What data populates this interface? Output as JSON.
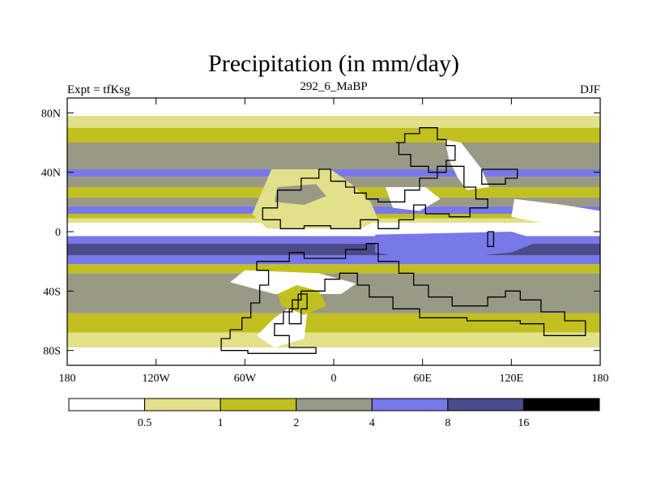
{
  "chart_data": {
    "type": "heatmap",
    "title": "Precipitation (in mm/day)",
    "left_string": "Expt = tfKsg",
    "center_string": "292_6_MaBP",
    "right_string": "DJF",
    "x_ticks": [
      {
        "value": -180,
        "label": "180"
      },
      {
        "value": -120,
        "label": "120W"
      },
      {
        "value": -60,
        "label": "60W"
      },
      {
        "value": 0,
        "label": "0"
      },
      {
        "value": 60,
        "label": "60E"
      },
      {
        "value": 120,
        "label": "120E"
      },
      {
        "value": 180,
        "label": "180"
      }
    ],
    "y_ticks": [
      {
        "value": 80,
        "label": "80N"
      },
      {
        "value": 40,
        "label": "40N"
      },
      {
        "value": 0,
        "label": "0"
      },
      {
        "value": -40,
        "label": "40S"
      },
      {
        "value": -80,
        "label": "80S"
      }
    ],
    "xlim": [
      -180,
      180
    ],
    "ylim": [
      -90,
      90
    ],
    "colorbar": {
      "levels": [
        "0.5",
        "1",
        "2",
        "4",
        "8",
        "16"
      ],
      "colors": [
        "#ffffff",
        "#e2e08a",
        "#c2c01e",
        "#999986",
        "#7878ea",
        "#4b4b8c",
        "#000000"
      ]
    },
    "zonal_bands": [
      {
        "lat_from": 90,
        "lat_to": 78,
        "bin": 0
      },
      {
        "lat_from": 78,
        "lat_to": 70,
        "bin": 1
      },
      {
        "lat_from": 70,
        "lat_to": 60,
        "bin": 2
      },
      {
        "lat_from": 60,
        "lat_to": 42,
        "bin": 3
      },
      {
        "lat_from": 42,
        "lat_to": 37,
        "bin": 4
      },
      {
        "lat_from": 37,
        "lat_to": 30,
        "bin": 3
      },
      {
        "lat_from": 30,
        "lat_to": 23,
        "bin": 2
      },
      {
        "lat_from": 23,
        "lat_to": 17,
        "bin": 3
      },
      {
        "lat_from": 17,
        "lat_to": 12,
        "bin": 4
      },
      {
        "lat_from": 12,
        "lat_to": 9,
        "bin": 2
      },
      {
        "lat_from": 9,
        "lat_to": 6,
        "bin": 1
      },
      {
        "lat_from": 6,
        "lat_to": -3,
        "bin": 0
      },
      {
        "lat_from": -3,
        "lat_to": -8,
        "bin": 4
      },
      {
        "lat_from": -8,
        "lat_to": -16,
        "bin": 5
      },
      {
        "lat_from": -16,
        "lat_to": -22,
        "bin": 4
      },
      {
        "lat_from": -22,
        "lat_to": -28,
        "bin": 2
      },
      {
        "lat_from": -28,
        "lat_to": -55,
        "bin": 3
      },
      {
        "lat_from": -55,
        "lat_to": -68,
        "bin": 2
      },
      {
        "lat_from": -68,
        "lat_to": -78,
        "bin": 1
      },
      {
        "lat_from": -78,
        "lat_to": -90,
        "bin": 0
      }
    ],
    "regions": [
      {
        "bin": 0,
        "points": [
          [
            -40,
            38
          ],
          [
            -8,
            38
          ],
          [
            5,
            30
          ],
          [
            25,
            18
          ],
          [
            20,
            6
          ],
          [
            -15,
            2
          ],
          [
            -40,
            4
          ],
          [
            -50,
            14
          ]
        ]
      },
      {
        "bin": 0,
        "points": [
          [
            35,
            30
          ],
          [
            62,
            30
          ],
          [
            72,
            22
          ],
          [
            58,
            14
          ],
          [
            40,
            16
          ]
        ]
      },
      {
        "bin": 0,
        "points": [
          [
            -60,
            -26
          ],
          [
            -10,
            -28
          ],
          [
            15,
            -35
          ],
          [
            5,
            -42
          ],
          [
            -40,
            -42
          ],
          [
            -70,
            -34
          ]
        ]
      },
      {
        "bin": 0,
        "points": [
          [
            -25,
            -48
          ],
          [
            -18,
            -55
          ],
          [
            -20,
            -72
          ],
          [
            -40,
            -78
          ],
          [
            -52,
            -70
          ],
          [
            -40,
            -58
          ]
        ]
      },
      {
        "bin": 0,
        "points": [
          [
            75,
            62
          ],
          [
            78,
            48
          ],
          [
            84,
            36
          ],
          [
            90,
            28
          ],
          [
            105,
            30
          ],
          [
            100,
            42
          ],
          [
            86,
            60
          ]
        ]
      },
      {
        "bin": 0,
        "points": [
          [
            122,
            22
          ],
          [
            155,
            18
          ],
          [
            180,
            14
          ],
          [
            180,
            6
          ],
          [
            150,
            4
          ],
          [
            120,
            10
          ]
        ]
      },
      {
        "bin": 1,
        "points": [
          [
            -42,
            42
          ],
          [
            -2,
            42
          ],
          [
            12,
            32
          ],
          [
            25,
            20
          ],
          [
            30,
            8
          ],
          [
            18,
            2
          ],
          [
            -45,
            2
          ],
          [
            -55,
            12
          ]
        ]
      },
      {
        "bin": 3,
        "points": [
          [
            -38,
            30
          ],
          [
            -12,
            32
          ],
          [
            -5,
            24
          ],
          [
            -20,
            18
          ],
          [
            -40,
            20
          ]
        ]
      },
      {
        "bin": 5,
        "points": [
          [
            40,
            -4
          ],
          [
            70,
            -2
          ],
          [
            100,
            -4
          ],
          [
            110,
            -10
          ],
          [
            80,
            -16
          ],
          [
            40,
            -12
          ]
        ]
      },
      {
        "bin": 4,
        "points": [
          [
            28,
            -2
          ],
          [
            120,
            0
          ],
          [
            140,
            -6
          ],
          [
            120,
            -14
          ],
          [
            60,
            -20
          ],
          [
            28,
            -14
          ]
        ]
      },
      {
        "bin": 2,
        "points": [
          [
            -25,
            -36
          ],
          [
            -10,
            -40
          ],
          [
            -5,
            -50
          ],
          [
            -20,
            -56
          ],
          [
            -35,
            -50
          ],
          [
            -38,
            -42
          ]
        ]
      }
    ]
  }
}
